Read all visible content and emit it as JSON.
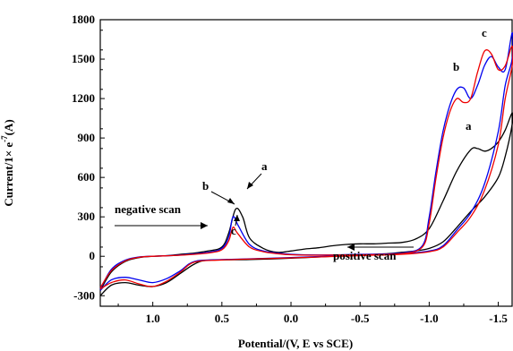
{
  "chart_data": {
    "type": "line",
    "title": "",
    "xlabel": "Potential/(V, E vs SCE)",
    "ylabel_parts": {
      "main": "Current/1× e",
      "sup": "-7",
      "unit": "(A)"
    },
    "xlim": [
      1.38,
      -1.6
    ],
    "ylim": [
      -380,
      1800
    ],
    "x_ticks": [
      1.0,
      0.5,
      0.0,
      -0.5,
      -1.0,
      -1.5
    ],
    "x_tick_labels": [
      "1.0",
      "0.5",
      "0.0",
      "-0.5",
      "-1.0",
      "-1.5"
    ],
    "y_ticks": [
      -300,
      0,
      300,
      600,
      900,
      1200,
      1500,
      1800
    ],
    "y_tick_labels": [
      "-300",
      "0",
      "300",
      "600",
      "900",
      "1200",
      "1500",
      "1800"
    ],
    "grid": false,
    "series": [
      {
        "name": "a",
        "color": "#000000",
        "points": [
          [
            1.38,
            -260
          ],
          [
            1.3,
            -120
          ],
          [
            1.2,
            -40
          ],
          [
            1.1,
            -10
          ],
          [
            1.0,
            0
          ],
          [
            0.9,
            5
          ],
          [
            0.8,
            15
          ],
          [
            0.7,
            25
          ],
          [
            0.6,
            40
          ],
          [
            0.5,
            70
          ],
          [
            0.45,
            180
          ],
          [
            0.4,
            360
          ],
          [
            0.35,
            300
          ],
          [
            0.3,
            140
          ],
          [
            0.2,
            60
          ],
          [
            0.1,
            30
          ],
          [
            0.0,
            40
          ],
          [
            -0.1,
            55
          ],
          [
            -0.2,
            65
          ],
          [
            -0.3,
            80
          ],
          [
            -0.4,
            90
          ],
          [
            -0.5,
            95
          ],
          [
            -0.6,
            95
          ],
          [
            -0.7,
            100
          ],
          [
            -0.8,
            105
          ],
          [
            -0.9,
            130
          ],
          [
            -1.0,
            210
          ],
          [
            -1.1,
            420
          ],
          [
            -1.2,
            650
          ],
          [
            -1.3,
            810
          ],
          [
            -1.35,
            820
          ],
          [
            -1.4,
            800
          ],
          [
            -1.45,
            820
          ],
          [
            -1.5,
            870
          ],
          [
            -1.55,
            960
          ],
          [
            -1.6,
            1090
          ],
          [
            -1.6,
            1000
          ],
          [
            -1.55,
            760
          ],
          [
            -1.5,
            600
          ],
          [
            -1.4,
            450
          ],
          [
            -1.3,
            340
          ],
          [
            -1.2,
            220
          ],
          [
            -1.1,
            110
          ],
          [
            -1.0,
            60
          ],
          [
            -0.9,
            40
          ],
          [
            -0.8,
            30
          ],
          [
            -0.7,
            20
          ],
          [
            -0.5,
            10
          ],
          [
            -0.3,
            0
          ],
          [
            0.0,
            -15
          ],
          [
            0.3,
            -25
          ],
          [
            0.6,
            -30
          ],
          [
            0.7,
            -60
          ],
          [
            0.8,
            -130
          ],
          [
            0.9,
            -200
          ],
          [
            1.0,
            -230
          ],
          [
            1.1,
            -220
          ],
          [
            1.2,
            -200
          ],
          [
            1.3,
            -220
          ],
          [
            1.38,
            -300
          ]
        ]
      },
      {
        "name": "b",
        "color": "#0000ee",
        "points": [
          [
            1.38,
            -250
          ],
          [
            1.3,
            -100
          ],
          [
            1.2,
            -30
          ],
          [
            1.1,
            -5
          ],
          [
            1.0,
            0
          ],
          [
            0.8,
            10
          ],
          [
            0.6,
            30
          ],
          [
            0.5,
            60
          ],
          [
            0.45,
            150
          ],
          [
            0.42,
            300
          ],
          [
            0.38,
            230
          ],
          [
            0.3,
            90
          ],
          [
            0.2,
            40
          ],
          [
            0.1,
            25
          ],
          [
            0.0,
            15
          ],
          [
            -0.2,
            10
          ],
          [
            -0.5,
            15
          ],
          [
            -0.8,
            25
          ],
          [
            -0.95,
            80
          ],
          [
            -1.0,
            300
          ],
          [
            -1.05,
            650
          ],
          [
            -1.1,
            950
          ],
          [
            -1.15,
            1150
          ],
          [
            -1.2,
            1270
          ],
          [
            -1.25,
            1280
          ],
          [
            -1.3,
            1200
          ],
          [
            -1.35,
            1300
          ],
          [
            -1.4,
            1450
          ],
          [
            -1.45,
            1520
          ],
          [
            -1.5,
            1440
          ],
          [
            -1.55,
            1420
          ],
          [
            -1.6,
            1700
          ],
          [
            -1.6,
            1500
          ],
          [
            -1.55,
            1300
          ],
          [
            -1.5,
            950
          ],
          [
            -1.4,
            550
          ],
          [
            -1.3,
            330
          ],
          [
            -1.2,
            200
          ],
          [
            -1.1,
            80
          ],
          [
            -1.0,
            40
          ],
          [
            -0.8,
            20
          ],
          [
            -0.5,
            10
          ],
          [
            0.0,
            -10
          ],
          [
            0.5,
            -25
          ],
          [
            0.7,
            -40
          ],
          [
            0.8,
            -110
          ],
          [
            0.9,
            -170
          ],
          [
            1.0,
            -200
          ],
          [
            1.1,
            -180
          ],
          [
            1.2,
            -160
          ],
          [
            1.3,
            -180
          ],
          [
            1.38,
            -260
          ]
        ]
      },
      {
        "name": "c",
        "color": "#ee0000",
        "points": [
          [
            1.38,
            -240
          ],
          [
            1.3,
            -110
          ],
          [
            1.2,
            -35
          ],
          [
            1.1,
            -8
          ],
          [
            1.0,
            0
          ],
          [
            0.8,
            8
          ],
          [
            0.6,
            25
          ],
          [
            0.5,
            50
          ],
          [
            0.45,
            120
          ],
          [
            0.42,
            220
          ],
          [
            0.39,
            180
          ],
          [
            0.3,
            70
          ],
          [
            0.2,
            35
          ],
          [
            0.1,
            20
          ],
          [
            0.0,
            12
          ],
          [
            -0.2,
            8
          ],
          [
            -0.5,
            12
          ],
          [
            -0.8,
            20
          ],
          [
            -0.95,
            70
          ],
          [
            -1.0,
            250
          ],
          [
            -1.05,
            600
          ],
          [
            -1.1,
            900
          ],
          [
            -1.15,
            1100
          ],
          [
            -1.2,
            1200
          ],
          [
            -1.25,
            1170
          ],
          [
            -1.3,
            1200
          ],
          [
            -1.35,
            1400
          ],
          [
            -1.4,
            1560
          ],
          [
            -1.45,
            1540
          ],
          [
            -1.5,
            1420
          ],
          [
            -1.55,
            1450
          ],
          [
            -1.6,
            1600
          ],
          [
            -1.6,
            1450
          ],
          [
            -1.55,
            1200
          ],
          [
            -1.5,
            850
          ],
          [
            -1.4,
            500
          ],
          [
            -1.3,
            300
          ],
          [
            -1.2,
            180
          ],
          [
            -1.1,
            70
          ],
          [
            -1.0,
            35
          ],
          [
            -0.8,
            15
          ],
          [
            -0.5,
            5
          ],
          [
            0.0,
            -12
          ],
          [
            0.5,
            -28
          ],
          [
            0.7,
            -45
          ],
          [
            0.8,
            -120
          ],
          [
            0.9,
            -190
          ],
          [
            1.0,
            -230
          ],
          [
            1.1,
            -210
          ],
          [
            1.2,
            -180
          ],
          [
            1.3,
            -200
          ],
          [
            1.38,
            -250
          ]
        ]
      }
    ],
    "annotations": {
      "negative_scan": "negative scan",
      "positive_scan": "positive scan"
    },
    "curve_labels": [
      {
        "text": "a",
        "near": "peak at 0.4 V"
      },
      {
        "text": "b",
        "near": "peak at 0.4 V"
      },
      {
        "text": "c",
        "near": "peak at 0.4 V"
      },
      {
        "text": "a",
        "near": "-1.3 V"
      },
      {
        "text": "b",
        "near": "-1.2 V"
      },
      {
        "text": "c",
        "near": "-1.45 V"
      }
    ]
  }
}
